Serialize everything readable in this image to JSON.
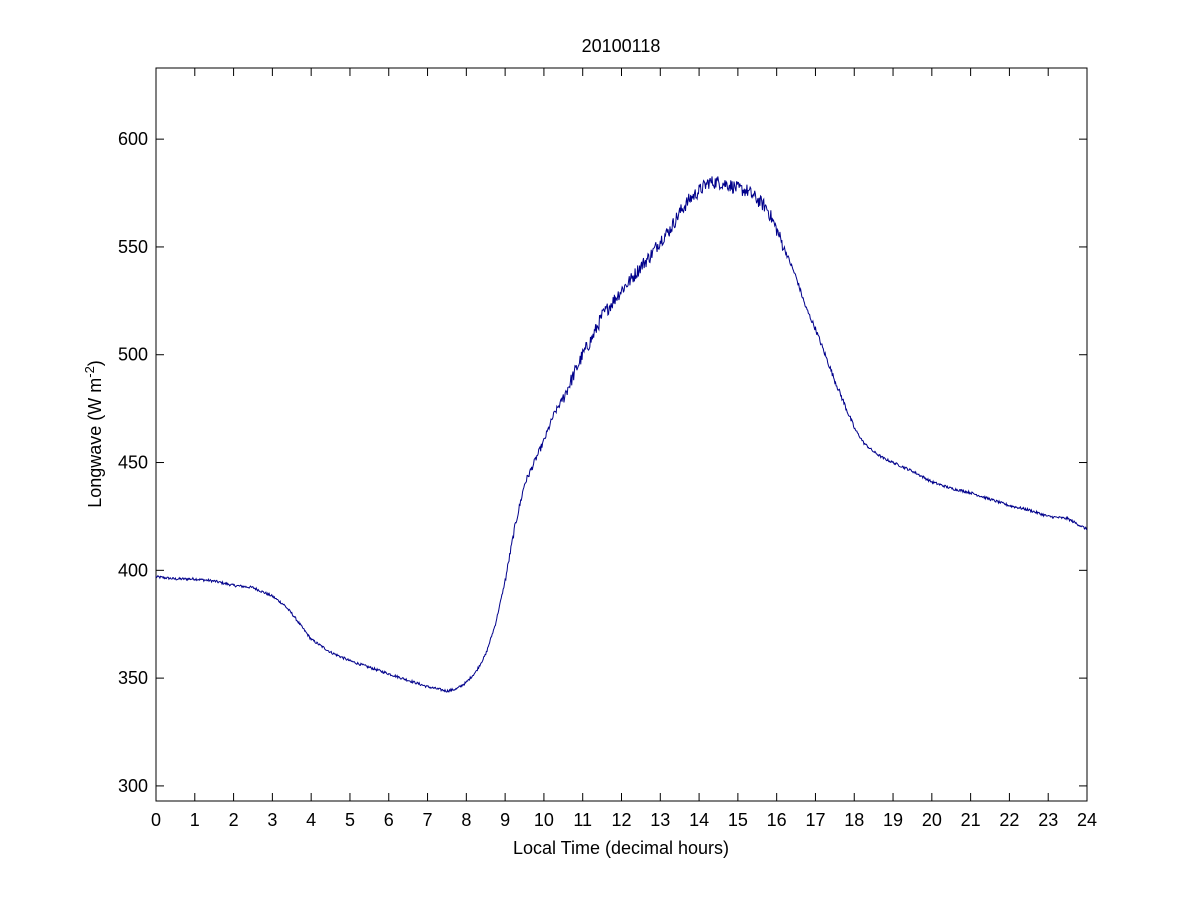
{
  "chart_data": {
    "type": "line",
    "title": "20100118",
    "xlabel": "Local Time (decimal hours)",
    "ylabel": {
      "main": "Longwave (W m",
      "superscript": "-2",
      "close": ")"
    },
    "xlim": [
      0,
      24
    ],
    "ylim": [
      293,
      633
    ],
    "xticks": [
      0,
      1,
      2,
      3,
      4,
      5,
      6,
      7,
      8,
      9,
      10,
      11,
      12,
      13,
      14,
      15,
      16,
      17,
      18,
      19,
      20,
      21,
      22,
      23,
      24
    ],
    "yticks": [
      300,
      350,
      400,
      450,
      500,
      550,
      600
    ],
    "grid": false,
    "legend": "none",
    "line_color": "#00008b",
    "series": [
      {
        "x": [
          0,
          0.5,
          1,
          1.5,
          2,
          2.5,
          3,
          3.3,
          3.5,
          3.75,
          4,
          4.25,
          4.5,
          5,
          5.5,
          6,
          6.5,
          7,
          7.5,
          7.75,
          8,
          8.25,
          8.5,
          8.75,
          9,
          9.25,
          9.5,
          9.75,
          10,
          10.25,
          10.5,
          10.75,
          11,
          11.25,
          11.5,
          11.75,
          12,
          12.25,
          12.5,
          12.75,
          13,
          13.25,
          13.5,
          13.75,
          14,
          14.25,
          14.5,
          14.75,
          15,
          15.25,
          15.5,
          15.75,
          16,
          16.25,
          16.5,
          16.75,
          17,
          17.25,
          17.5,
          17.75,
          18,
          18.25,
          18.5,
          18.75,
          19,
          19.5,
          20,
          20.5,
          21,
          21.5,
          22,
          22.5,
          23,
          23.5,
          24
        ],
        "y": [
          397,
          396,
          396,
          395,
          393,
          392,
          388,
          384,
          380,
          374,
          368,
          365,
          362,
          358,
          355,
          352,
          349,
          346,
          344,
          345,
          348,
          353,
          361,
          375,
          395,
          420,
          440,
          450,
          460,
          472,
          480,
          490,
          500,
          508,
          518,
          524,
          530,
          535,
          541,
          546,
          553,
          558,
          566,
          572,
          576,
          580,
          580,
          579,
          577,
          576,
          572,
          568,
          558,
          547,
          536,
          522,
          512,
          500,
          488,
          477,
          466,
          459,
          455,
          452,
          450,
          446,
          441,
          438,
          436,
          433,
          430,
          428,
          425,
          424,
          419
        ]
      }
    ]
  }
}
